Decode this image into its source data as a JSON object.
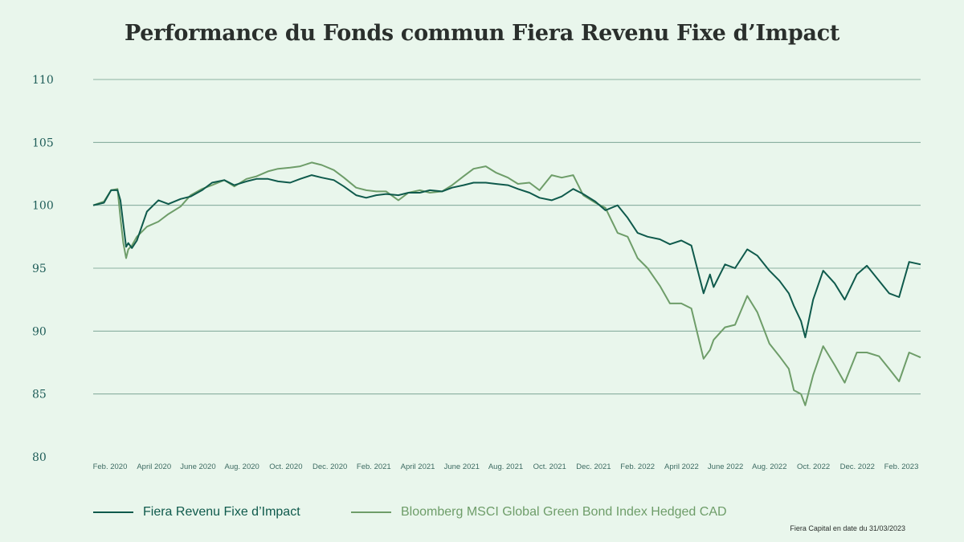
{
  "chart_data": {
    "type": "line",
    "title": "Performance du Fonds commun Fiera Revenu Fixe d’Impact",
    "xlabel": "",
    "ylabel": "",
    "ylim": [
      80,
      110
    ],
    "yticks": [
      80,
      85,
      90,
      95,
      100,
      105,
      110
    ],
    "grid": "horizontal",
    "legend_position": "bottom-left",
    "x_tick_labels": [
      "Feb. 2020",
      "April 2020",
      "June 2020",
      "Aug. 2020",
      "Oct. 2020",
      "Dec. 2020",
      "Feb. 2021",
      "April 2021",
      "June 2021",
      "Aug. 2021",
      "Oct. 2021",
      "Dec. 2021",
      "Feb. 2022",
      "April 2022",
      "June 2022",
      "Aug. 2022",
      "Oct. 2022",
      "Dec. 2022",
      "Feb. 2023"
    ],
    "x": [
      "2020-01-31",
      "2020-02-15",
      "2020-02-25",
      "2020-03-05",
      "2020-03-09",
      "2020-03-13",
      "2020-03-17",
      "2020-03-20",
      "2020-03-25",
      "2020-04-01",
      "2020-04-15",
      "2020-05-01",
      "2020-05-15",
      "2020-06-01",
      "2020-06-15",
      "2020-07-01",
      "2020-07-15",
      "2020-08-01",
      "2020-08-15",
      "2020-09-01",
      "2020-09-15",
      "2020-10-01",
      "2020-10-15",
      "2020-11-01",
      "2020-11-15",
      "2020-12-01",
      "2020-12-15",
      "2021-01-01",
      "2021-01-15",
      "2021-02-01",
      "2021-02-15",
      "2021-03-01",
      "2021-03-15",
      "2021-04-01",
      "2021-04-15",
      "2021-05-01",
      "2021-05-15",
      "2021-06-01",
      "2021-06-15",
      "2021-07-01",
      "2021-07-15",
      "2021-08-01",
      "2021-08-15",
      "2021-09-01",
      "2021-09-15",
      "2021-10-01",
      "2021-10-15",
      "2021-11-01",
      "2021-11-15",
      "2021-12-01",
      "2021-12-15",
      "2022-01-01",
      "2022-01-15",
      "2022-02-01",
      "2022-02-15",
      "2022-03-01",
      "2022-03-15",
      "2022-04-01",
      "2022-04-15",
      "2022-05-01",
      "2022-05-15",
      "2022-06-01",
      "2022-06-10",
      "2022-06-15",
      "2022-07-01",
      "2022-07-15",
      "2022-08-01",
      "2022-08-15",
      "2022-09-01",
      "2022-09-15",
      "2022-09-28",
      "2022-10-05",
      "2022-10-15",
      "2022-10-21",
      "2022-11-01",
      "2022-11-15",
      "2022-12-01",
      "2022-12-15",
      "2023-01-01",
      "2023-01-15",
      "2023-02-01",
      "2023-02-15",
      "2023-03-01",
      "2023-03-15",
      "2023-03-31"
    ],
    "series": [
      {
        "name": "Fiera Revenu Fixe d’Impact",
        "color": "#0f5a4c",
        "values": [
          100,
          100.2,
          101.2,
          101.2,
          100.4,
          98.5,
          96.7,
          97.0,
          96.6,
          97.2,
          99.5,
          100.4,
          100.1,
          100.5,
          100.7,
          101.2,
          101.8,
          102.0,
          101.6,
          101.9,
          102.1,
          102.1,
          101.9,
          101.8,
          102.1,
          102.4,
          102.2,
          102.0,
          101.5,
          100.8,
          100.6,
          100.8,
          100.9,
          100.8,
          101.0,
          101.0,
          101.2,
          101.1,
          101.4,
          101.6,
          101.8,
          101.8,
          101.7,
          101.6,
          101.3,
          101.0,
          100.6,
          100.4,
          100.7,
          101.3,
          100.9,
          100.3,
          99.6,
          100.0,
          99.0,
          97.8,
          97.5,
          97.3,
          96.9,
          97.2,
          96.8,
          93.0,
          94.5,
          93.5,
          95.3,
          95.0,
          96.5,
          96.0,
          94.8,
          94.0,
          93.0,
          92.0,
          90.8,
          89.5,
          92.5,
          94.8,
          93.8,
          92.5,
          94.5,
          95.2,
          94.0,
          93.0,
          92.7,
          95.5,
          95.3
        ]
      },
      {
        "name": "Bloomberg MSCI Global Green Bond Index Hedged CAD",
        "color": "#6e9d69",
        "values": [
          100,
          100.3,
          101.2,
          101.3,
          99.0,
          97.0,
          95.8,
          96.5,
          96.8,
          97.5,
          98.3,
          98.7,
          99.3,
          99.9,
          100.8,
          101.3,
          101.6,
          102.0,
          101.5,
          102.1,
          102.3,
          102.7,
          102.9,
          103.0,
          103.1,
          103.4,
          103.2,
          102.8,
          102.2,
          101.4,
          101.2,
          101.1,
          101.1,
          100.4,
          101.0,
          101.2,
          101.0,
          101.1,
          101.6,
          102.3,
          102.9,
          103.1,
          102.6,
          102.2,
          101.7,
          101.8,
          101.2,
          102.4,
          102.2,
          102.4,
          100.8,
          100.2,
          99.8,
          97.8,
          97.5,
          95.8,
          95.0,
          93.6,
          92.2,
          92.2,
          91.8,
          87.8,
          88.5,
          89.3,
          90.3,
          90.5,
          92.8,
          91.5,
          89.0,
          88.0,
          87.0,
          85.3,
          85.0,
          84.1,
          86.5,
          88.8,
          87.3,
          85.9,
          88.3,
          88.3,
          88.0,
          87.0,
          86.0,
          88.3,
          87.9
        ]
      }
    ]
  },
  "legend": {
    "fund_label": "Fiera Revenu Fixe d’Impact",
    "benchmark_label": "Bloomberg MSCI Global Green Bond Index Hedged CAD"
  },
  "source_note": "Fiera Capital en date du 31/03/2023"
}
